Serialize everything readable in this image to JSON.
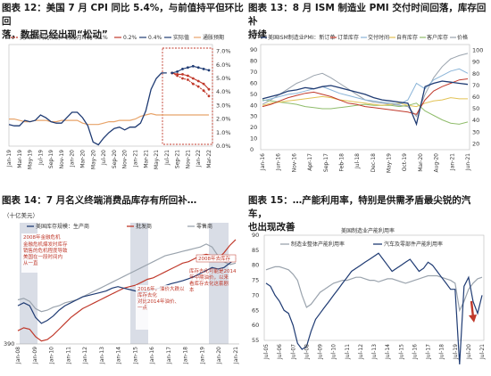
{
  "panels": {
    "p1": {
      "title_line1": "图表 12：美国 7 月 CPI 同比 5.4%，与前值持平但环比回",
      "title_line2": "落，数据已经出现“松动”"
    },
    "p2": {
      "title_line1": "图表 13：8 月 ISM 制造业 PMI 交付时间回落，库存回补",
      "title_line2": "持续"
    },
    "p3": {
      "title_line1": "图表 14：7 月名义终端消费品库存有所回补…"
    },
    "p4": {
      "title_line1": "图表 15：…产能利用率，特别是供需矛盾最尖锐的汽车，",
      "title_line2": "也出现改善"
    }
  },
  "colors": {
    "dark_blue": "#1f3b73",
    "red": "#c0392b",
    "orange": "#e8a46a",
    "grey": "#9aa3ad",
    "light_blue": "#8ab4d8",
    "green": "#8fbc6a",
    "yellow": "#e2c255",
    "shade": "#d9dde6"
  },
  "chart_data": [
    {
      "id": "cpi",
      "type": "line",
      "x_ticks": [
        "Jan-19",
        "Mar-19",
        "May-19",
        "Jul-19",
        "Sep-19",
        "Nov-19",
        "Jan-20",
        "Mar-20",
        "May-20",
        "Jul-20",
        "Sep-20",
        "Nov-20",
        "Jan-21",
        "Mar-21",
        "May-21",
        "Jul-21",
        "Sep-21",
        "Nov-21",
        "Jan-22",
        "Mar-22"
      ],
      "y_ticks": [
        "7.0%",
        "6.0%",
        "5.0%",
        "4.0%",
        "3.0%",
        "2.0%",
        "1.0%",
        "0.0%"
      ],
      "ylim": [
        0,
        7.5
      ],
      "legend": [
        "美国CPI同比预测：假设月环比 0.1%",
        "0.2%",
        "0.4%",
        "实际值",
        "通胀预期"
      ],
      "series": [
        {
          "name": "实际值",
          "values": [
            1.6,
            1.5,
            1.5,
            1.9,
            1.8,
            1.9,
            2.3,
            2.1,
            1.8,
            1.7,
            1.7,
            2.1,
            2.5,
            2.5,
            2.1,
            1.5,
            0.3,
            0.1,
            0.6,
            1.0,
            1.3,
            1.4,
            1.2,
            1.4,
            1.4,
            1.7,
            2.6,
            4.2,
            5.0,
            5.4,
            5.4
          ]
        },
        {
          "name": "通胀预期",
          "values": [
            2.0,
            2.0,
            1.9,
            1.8,
            1.8,
            1.9,
            1.9,
            1.9,
            1.8,
            1.8,
            1.9,
            1.9,
            1.9,
            1.9,
            1.7,
            1.6,
            1.6,
            1.6,
            1.7,
            1.8,
            1.8,
            1.9,
            1.9,
            1.9,
            2.0,
            2.2,
            2.3,
            2.4,
            2.3,
            2.3,
            2.3,
            2.3,
            2.3,
            2.3,
            2.3,
            2.3,
            2.3,
            2.3,
            2.3
          ]
        },
        {
          "name": "0.1%",
          "values": [
            5.4,
            5.2,
            5.0,
            4.9,
            4.6,
            4.4,
            4.1,
            3.7
          ]
        },
        {
          "name": "0.2%",
          "values": [
            5.4,
            5.3,
            5.3,
            5.2,
            5.0,
            4.8,
            4.6,
            4.2
          ]
        },
        {
          "name": "0.4%",
          "values": [
            5.4,
            5.5,
            5.7,
            5.8,
            5.9,
            5.8,
            5.7,
            5.6
          ]
        }
      ]
    },
    {
      "id": "ism",
      "type": "line",
      "x_ticks": [
        "Jan-16",
        "Jun-16",
        "Nov-16",
        "Apr-17",
        "Sep-17",
        "Feb-18",
        "Jul-18",
        "Dec-18",
        "May-19",
        "Oct-19",
        "Mar-20",
        "Aug-20",
        "Jan-21",
        "Jun-21"
      ],
      "y_ticks_left": [
        "90",
        "80",
        "70",
        "60",
        "50",
        "40",
        "30",
        "20",
        "10",
        "0"
      ],
      "y_ticks_right": [
        "100",
        "90",
        "80",
        "70",
        "60",
        "50",
        "40",
        "30",
        "20"
      ],
      "y_unit_left": "%",
      "legend": [
        "美国ISM制造业PMI：新订单",
        "订单库存",
        "交付时间",
        "自有库存",
        "客户库存",
        "价格"
      ],
      "series": [
        {
          "name": "新订单",
          "values": [
            51,
            53,
            55,
            58,
            59,
            61,
            60,
            62,
            63,
            61,
            59,
            57,
            55,
            52,
            50,
            49,
            48,
            47,
            28,
            62,
            65,
            67,
            66,
            65,
            64
          ]
        },
        {
          "name": "订单库存",
          "values": [
            44,
            46,
            49,
            52,
            54,
            56,
            57,
            55,
            53,
            50,
            47,
            46,
            44,
            43,
            42,
            41,
            40,
            39,
            37,
            50,
            58,
            62,
            65,
            68,
            69
          ]
        },
        {
          "name": "交付时间",
          "values": [
            49,
            51,
            53,
            55,
            56,
            58,
            60,
            62,
            59,
            56,
            54,
            52,
            50,
            49,
            48,
            47,
            46,
            50,
            65,
            60,
            68,
            72,
            76,
            78,
            74
          ]
        },
        {
          "name": "自有库存",
          "values": [
            45,
            47,
            48,
            49,
            50,
            51,
            52,
            53,
            52,
            50,
            49,
            48,
            47,
            46,
            45,
            46,
            47,
            45,
            44,
            47,
            49,
            50,
            52,
            51,
            51
          ]
        },
        {
          "name": "客户库存",
          "values": [
            50,
            49,
            48,
            47,
            46,
            44,
            43,
            42,
            42,
            43,
            44,
            45,
            46,
            45,
            45,
            45,
            44,
            45,
            47,
            40,
            36,
            32,
            29,
            28,
            30
          ]
        },
        {
          "name": "价格",
          "values": [
            46,
            50,
            55,
            60,
            65,
            68,
            72,
            74,
            70,
            65,
            60,
            55,
            50,
            48,
            47,
            46,
            45,
            44,
            35,
            55,
            70,
            80,
            87,
            90,
            92
          ]
        }
      ]
    },
    {
      "id": "inventory",
      "type": "line",
      "x_ticks": [
        "Jan-08",
        "Jan-09",
        "Jan-10",
        "Jan-11",
        "Jan-12",
        "Jan-13",
        "Jan-14",
        "Jan-15",
        "Jan-16",
        "Jan-17",
        "Jan-18",
        "Jan-19",
        "Jan-20",
        "Jan-21"
      ],
      "y_unit": "（十亿美元）",
      "y_ticks": [
        "390"
      ],
      "legend": [
        "美国库存规模：生产商",
        "批发商",
        "零售商"
      ],
      "notes": [
        "2008年金融危机",
        "金融危机爆发时库存",
        "销售的危机程度导致",
        "美国在一段时间内",
        "从一直",
        "2008年去库存",
        "2016年，油价大跌以",
        "库存去化",
        "对比2014年油价、",
        "一点",
        "库存去化可能是2014",
        "年中期油价，以来",
        "看库存去化这套剧",
        "本"
      ],
      "series": [
        {
          "name": "生产商",
          "values": [
            480,
            490,
            480,
            440,
            420,
            430,
            445,
            465,
            480,
            490,
            500,
            510,
            515,
            520,
            525,
            530,
            540,
            545,
            540,
            535,
            530,
            528,
            530,
            535,
            540,
            548,
            555,
            560,
            565,
            572,
            580,
            590,
            600,
            610,
            605,
            610,
            625,
            640
          ]
        },
        {
          "name": "批发商",
          "values": [
            395,
            405,
            400,
            375,
            360,
            365,
            380,
            400,
            420,
            440,
            455,
            470,
            480,
            490,
            500,
            510,
            520,
            530,
            540,
            545,
            550,
            560,
            570,
            575,
            585,
            595,
            605,
            615,
            625,
            630,
            640,
            650,
            655,
            650,
            640,
            660,
            685,
            705
          ]
        },
        {
          "name": "零售商",
          "values": [
            500,
            505,
            495,
            470,
            460,
            465,
            475,
            480,
            490,
            495,
            500,
            510,
            520,
            530,
            540,
            550,
            560,
            570,
            580,
            590,
            600,
            610,
            620,
            630,
            640,
            650,
            655,
            660,
            665,
            670,
            675,
            680,
            690,
            680,
            650,
            630,
            620,
            625
          ]
        }
      ]
    },
    {
      "id": "capacity",
      "type": "line",
      "x_ticks": [
        "Jul-05",
        "Jul-06",
        "Jul-07",
        "Jul-08",
        "Jul-09",
        "Jul-10",
        "Jul-11",
        "Jul-12",
        "Jul-13",
        "Jul-14",
        "Jul-15",
        "Jul-16",
        "Jul-17",
        "Jul-18",
        "Jul-19",
        "Jul-20",
        "Jul-21"
      ],
      "y_ticks": [
        "90",
        "85",
        "80",
        "75",
        "70",
        "65",
        "60",
        "55"
      ],
      "ylim": [
        55,
        90
      ],
      "title": "美国制造业产能利用率",
      "legend": [
        "制造业整体产能利用率",
        "汽车及零部件产能利用率"
      ],
      "series": [
        {
          "name": "制造业整体产能利用率",
          "values": [
            78.5,
            79,
            79.5,
            79.5,
            79,
            78.5,
            77,
            75,
            70,
            66,
            67,
            69,
            71,
            72,
            73,
            74,
            74.5,
            75,
            75,
            75.5,
            76,
            76,
            75.5,
            75,
            75,
            74.5,
            75,
            75.5,
            75.5,
            75,
            74.5,
            74,
            74.5,
            75,
            75.5,
            76,
            76.5,
            76.5,
            76.5,
            76,
            75.5,
            75,
            74,
            65,
            68,
            72,
            74,
            75.5,
            76
          ]
        },
        {
          "name": "汽车及零部件产能利用率",
          "values": [
            74,
            73,
            70,
            68,
            65,
            64,
            60,
            54,
            52,
            53,
            58,
            62,
            64,
            66,
            68,
            70,
            72,
            74,
            76,
            78,
            79,
            80,
            81,
            82,
            83,
            84,
            82,
            80,
            78,
            79,
            80,
            81,
            82,
            80,
            78,
            79,
            81,
            80,
            78,
            76,
            74,
            72,
            72,
            47,
            73,
            76,
            68,
            64,
            70
          ]
        }
      ]
    }
  ]
}
